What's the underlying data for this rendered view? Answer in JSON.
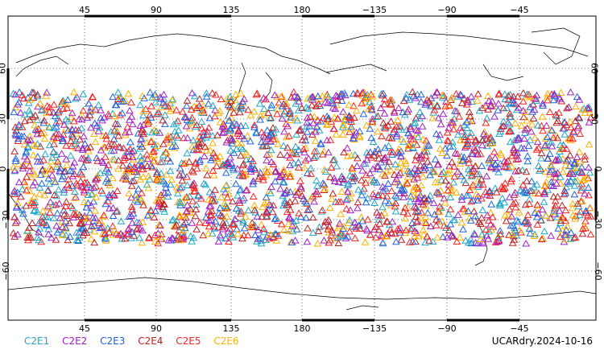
{
  "map": {
    "lon_ticks_top": [
      "45",
      "90",
      "135",
      "180",
      "−135",
      "−90",
      "−45"
    ],
    "lon_ticks_bottom": [
      "45",
      "90",
      "135",
      "180",
      "−135",
      "−90",
      "−45"
    ],
    "lat_ticks": [
      "60",
      "30",
      "0",
      "−30",
      "−60"
    ],
    "projection": "cylindrical equidistant, centered 180",
    "lon_range": [
      0,
      360
    ],
    "lat_range": [
      -90,
      90
    ],
    "marker_symbol": "open triangle",
    "observation_band_lat": [
      -45,
      45
    ]
  },
  "legend": {
    "items": [
      {
        "label": "C2E1",
        "color": "#20a8c8"
      },
      {
        "label": "C2E2",
        "color": "#a020c8"
      },
      {
        "label": "C2E3",
        "color": "#2060e0"
      },
      {
        "label": "C2E4",
        "color": "#c02020"
      },
      {
        "label": "C2E5",
        "color": "#ff2020"
      },
      {
        "label": "C2E6",
        "color": "#ffb000"
      }
    ]
  },
  "footer": {
    "label": "UCARdry.2024-10-16"
  }
}
